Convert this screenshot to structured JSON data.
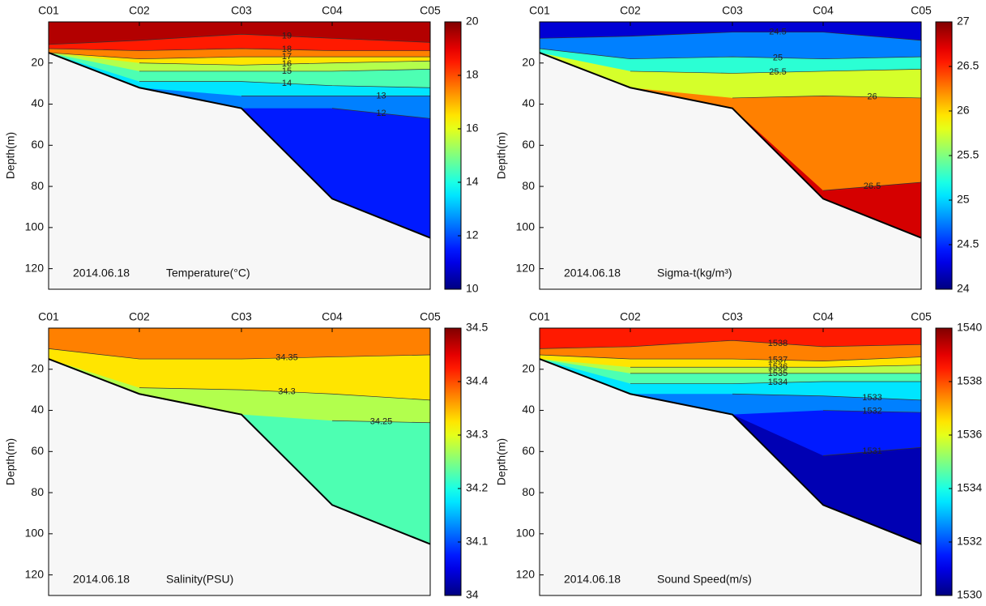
{
  "chart_data": [
    {
      "type": "contour",
      "categories": [
        "C01",
        "C02",
        "C03",
        "C04",
        "C05"
      ],
      "ylabel": "Depth(m)",
      "date": "2014.06.18",
      "label": "Temperature(°C)",
      "ylim": [
        0,
        130
      ],
      "yticks": [
        20,
        40,
        60,
        80,
        100,
        120
      ],
      "y_inverted": true,
      "zlim": [
        10,
        20
      ],
      "zticks": [
        10,
        12,
        14,
        16,
        18,
        20
      ],
      "colormap": "jet",
      "seabed": [
        15,
        32,
        42,
        86,
        105
      ],
      "series": [
        {
          "name": "19",
          "values": [
            11,
            9,
            6,
            8,
            10
          ]
        },
        {
          "name": "18",
          "values": [
            13,
            14,
            13,
            14,
            14
          ]
        },
        {
          "name": "17",
          "values": [
            15,
            18,
            17,
            17,
            17
          ]
        },
        {
          "name": "16",
          "values": [
            null,
            20,
            21,
            20,
            19
          ]
        },
        {
          "name": "15",
          "values": [
            null,
            24,
            24,
            24,
            23
          ]
        },
        {
          "name": "14",
          "values": [
            null,
            29,
            29,
            31,
            32
          ]
        },
        {
          "name": "13",
          "values": [
            null,
            null,
            36,
            36,
            36
          ]
        },
        {
          "name": "12",
          "values": [
            null,
            null,
            null,
            42,
            47
          ]
        }
      ]
    },
    {
      "type": "contour",
      "categories": [
        "C01",
        "C02",
        "C03",
        "C04",
        "C05"
      ],
      "ylabel": "Depth(m)",
      "date": "2014.06.18",
      "label": "Sigma-t(kg/m³)",
      "ylim": [
        0,
        130
      ],
      "yticks": [
        20,
        40,
        60,
        80,
        100,
        120
      ],
      "y_inverted": true,
      "zlim": [
        24,
        27
      ],
      "zticks": [
        24,
        24.5,
        25,
        25.5,
        26,
        26.5,
        27
      ],
      "colormap": "jet",
      "seabed": [
        15,
        32,
        42,
        86,
        105
      ],
      "series": [
        {
          "name": "24.5",
          "values": [
            8,
            7,
            5,
            5,
            9
          ]
        },
        {
          "name": "25",
          "values": [
            13,
            18,
            17,
            18,
            17
          ]
        },
        {
          "name": "25.5",
          "values": [
            null,
            24,
            25,
            24,
            23
          ]
        },
        {
          "name": "26",
          "values": [
            null,
            null,
            37,
            36,
            37
          ]
        },
        {
          "name": "26.5",
          "values": [
            null,
            null,
            null,
            82,
            78
          ]
        }
      ]
    },
    {
      "type": "contour",
      "categories": [
        "C01",
        "C02",
        "C03",
        "C04",
        "C05"
      ],
      "ylabel": "Depth(m)",
      "date": "2014.06.18",
      "label": "Salinity(PSU)",
      "ylim": [
        0,
        130
      ],
      "yticks": [
        20,
        40,
        60,
        80,
        100,
        120
      ],
      "y_inverted": true,
      "zlim": [
        34,
        34.5
      ],
      "zticks": [
        34,
        34.1,
        34.2,
        34.3,
        34.4,
        34.5
      ],
      "colormap": "jet",
      "seabed": [
        15,
        32,
        42,
        86,
        105
      ],
      "series": [
        {
          "name": "34.35",
          "values": [
            10,
            15,
            15,
            14,
            13
          ]
        },
        {
          "name": "34.3",
          "values": [
            null,
            29,
            30,
            32,
            35
          ]
        },
        {
          "name": "34.25",
          "values": [
            null,
            null,
            null,
            45,
            46
          ]
        }
      ]
    },
    {
      "type": "contour",
      "categories": [
        "C01",
        "C02",
        "C03",
        "C04",
        "C05"
      ],
      "ylabel": "Depth(m)",
      "date": "2014.06.18",
      "label": "Sound Speed(m/s)",
      "ylim": [
        0,
        130
      ],
      "yticks": [
        20,
        40,
        60,
        80,
        100,
        120
      ],
      "y_inverted": true,
      "zlim": [
        1530,
        1540
      ],
      "zticks": [
        1530,
        1532,
        1534,
        1536,
        1538,
        1540
      ],
      "colormap": "jet",
      "seabed": [
        15,
        32,
        42,
        86,
        105
      ],
      "series": [
        {
          "name": "1538",
          "values": [
            10,
            9,
            6,
            9,
            8
          ]
        },
        {
          "name": "1537",
          "values": [
            13,
            15,
            15,
            16,
            14
          ]
        },
        {
          "name": "1536",
          "values": [
            null,
            19,
            19,
            19,
            18
          ]
        },
        {
          "name": "1535",
          "values": [
            null,
            22,
            22,
            22,
            22
          ]
        },
        {
          "name": "1534",
          "values": [
            null,
            27,
            27,
            26,
            26
          ]
        },
        {
          "name": "1533",
          "values": [
            null,
            null,
            32,
            33,
            35
          ]
        },
        {
          "name": "1532",
          "values": [
            null,
            null,
            null,
            40,
            41
          ]
        },
        {
          "name": "1531",
          "values": [
            null,
            null,
            null,
            62,
            58
          ]
        }
      ]
    }
  ]
}
